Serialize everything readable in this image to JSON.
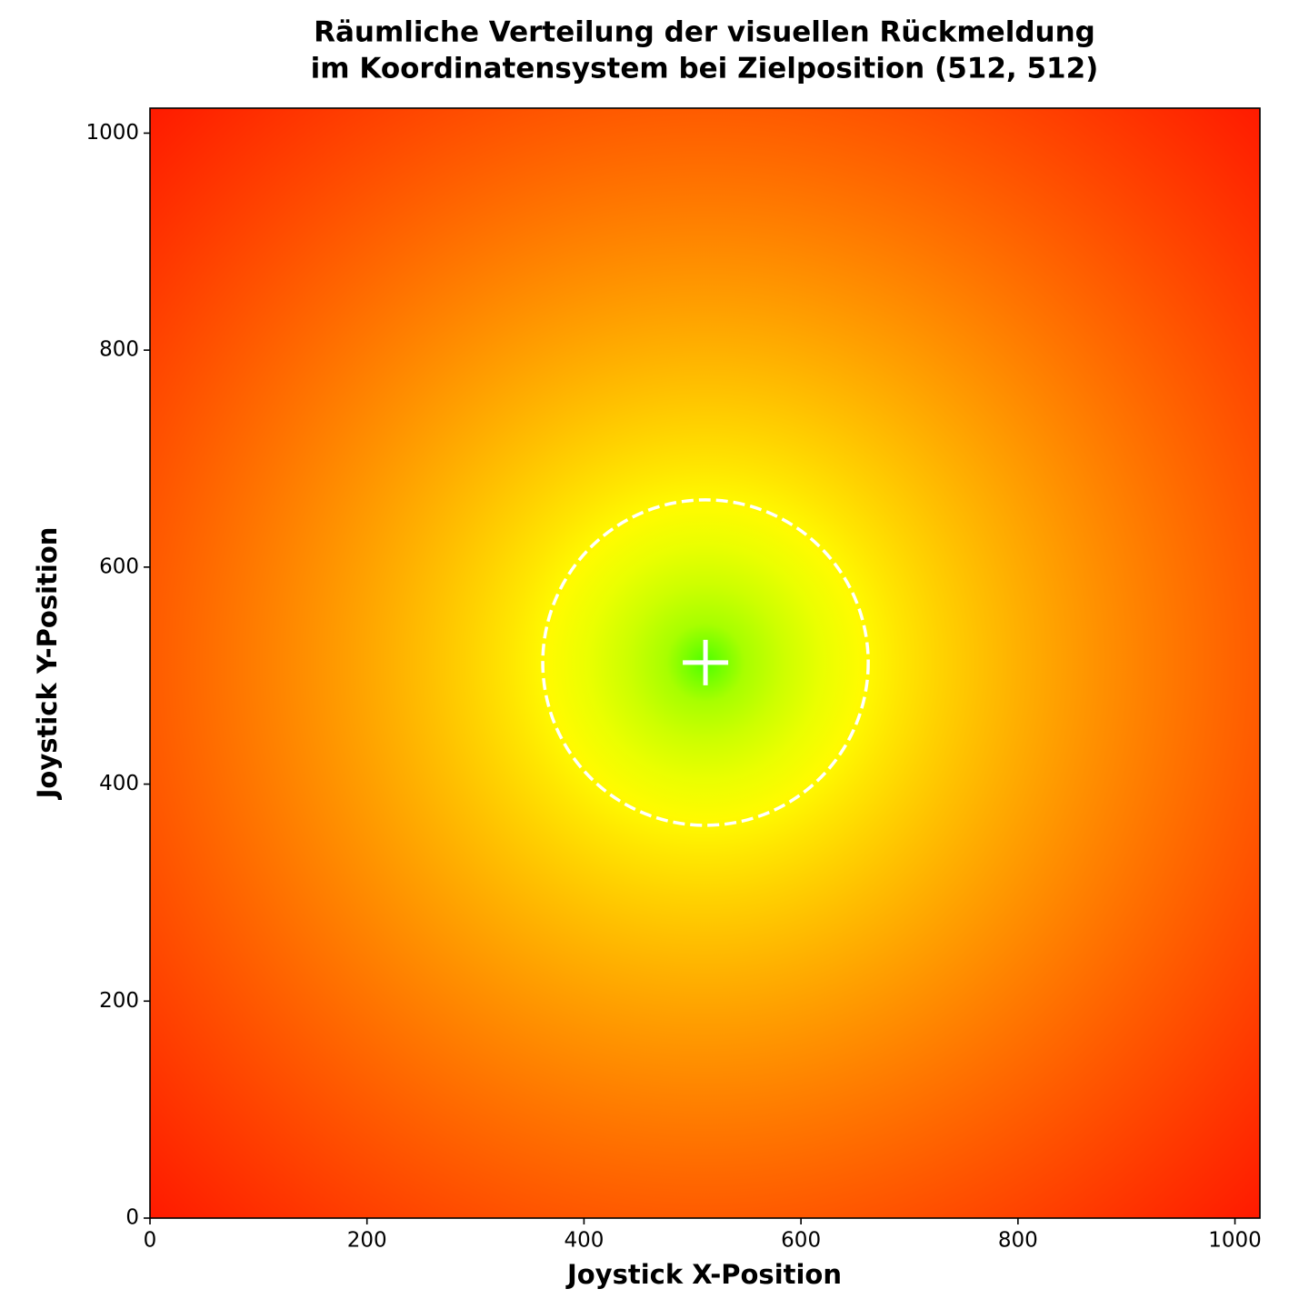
{
  "chart_data": {
    "type": "radial-field",
    "title": [
      "Räumliche Verteilung der visuellen Rückmeldung",
      "im Koordinatensystem bei Zielposition (512, 512)"
    ],
    "x_label": "Joystick X-Position",
    "y_label": "Joystick Y-Position",
    "target": {
      "x": 512,
      "y": 512
    },
    "radius": 150,
    "center_color": "#4dff00",
    "edge_color": "#ff1a00",
    "marker_color": "#ffffff",
    "xlim": [
      0,
      1023
    ],
    "ylim": [
      0,
      1023
    ],
    "xticks": [
      0,
      200,
      400,
      600,
      800,
      1000
    ],
    "yticks": [
      0,
      200,
      400,
      600,
      800,
      1000
    ]
  }
}
